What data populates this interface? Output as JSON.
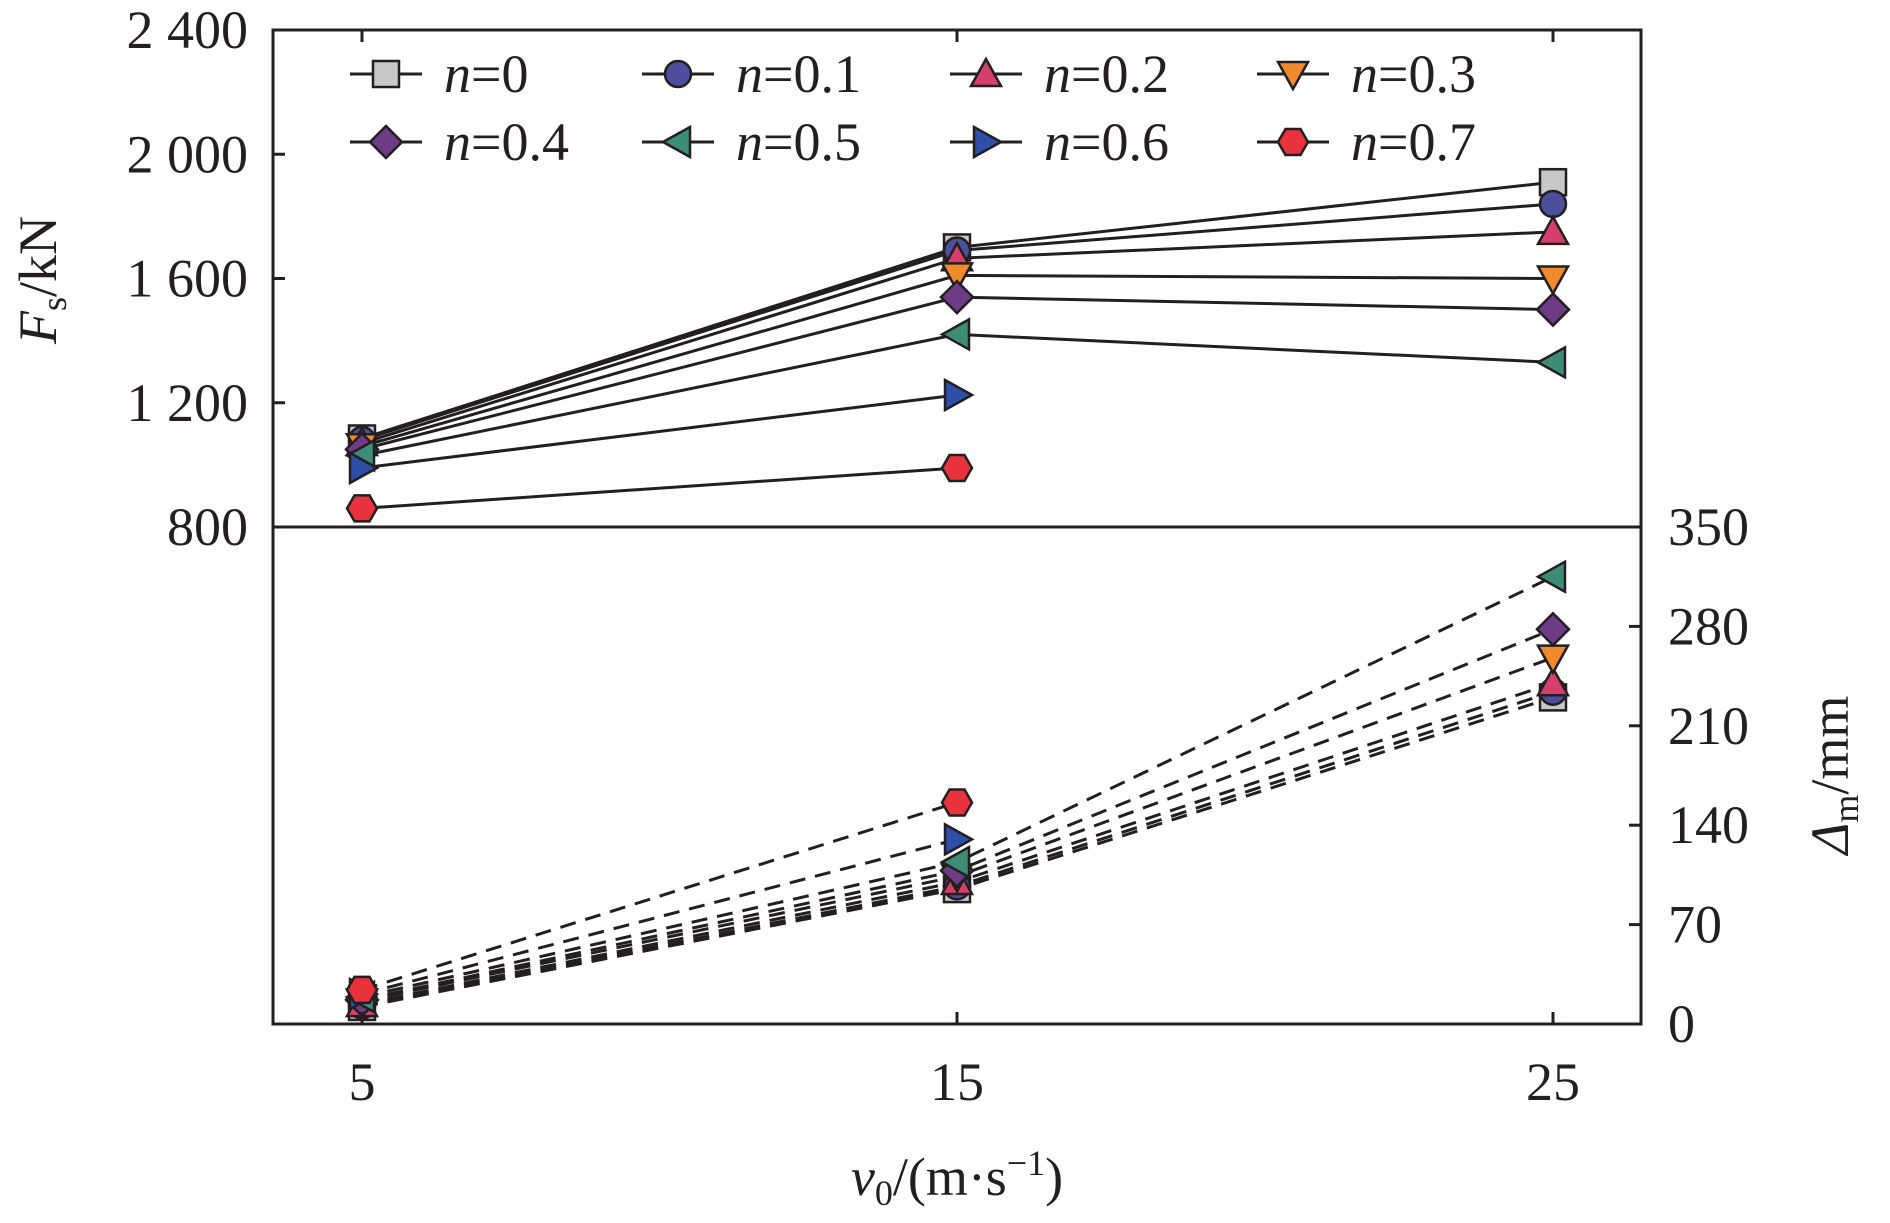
{
  "chart_data": {
    "type": "line",
    "x": [
      5,
      15,
      25
    ],
    "xticks": [
      "5",
      "15",
      "25"
    ],
    "xlabel": {
      "base": "v",
      "sub": "0",
      "rest": "/(m·s",
      "sup": "−1",
      "end": ")"
    },
    "top_panel": {
      "ylabel": {
        "base": "F",
        "sub": "s",
        "rest": "/kN"
      },
      "ylim": [
        800,
        2400
      ],
      "yticks": [
        800,
        1200,
        1600,
        2000,
        2400
      ],
      "ytick_labels": [
        "800",
        "1 200",
        "1 600",
        "2 000",
        "2 400"
      ],
      "line_style": "solid"
    },
    "bottom_panel": {
      "ylabel": {
        "base": "Δ",
        "sub": "m",
        "rest": "/mm"
      },
      "ylim": [
        0,
        350
      ],
      "yticks": [
        0,
        70,
        140,
        210,
        280,
        350
      ],
      "ytick_labels": [
        "0",
        "70",
        "140",
        "210",
        "280",
        "350"
      ],
      "line_style": "dashed",
      "axis_side": "right"
    },
    "legend": {
      "placement": "top",
      "columns": 4
    },
    "series": [
      {
        "name": "n=0",
        "label_var": "n",
        "label_val": "=0",
        "marker": "square",
        "color": "#c8c8c8",
        "force": [
          1085,
          1700,
          1910
        ],
        "disp": [
          12,
          95,
          230
        ]
      },
      {
        "name": "n=0.1",
        "label_var": "n",
        "label_val": "=0.1",
        "marker": "circle",
        "color": "#4b4f9c",
        "force": [
          1080,
          1690,
          1840
        ],
        "disp": [
          13,
          97,
          234
        ]
      },
      {
        "name": "n=0.2",
        "label_var": "n",
        "label_val": "=0.2",
        "marker": "triangle-up",
        "color": "#d63f6b",
        "force": [
          1070,
          1665,
          1750
        ],
        "disp": [
          14,
          100,
          240
        ]
      },
      {
        "name": "n=0.3",
        "label_var": "n",
        "label_val": "=0.3",
        "marker": "triangle-down",
        "color": "#f08a2c",
        "force": [
          1060,
          1610,
          1600
        ],
        "disp": [
          16,
          104,
          258
        ]
      },
      {
        "name": "n=0.4",
        "label_var": "n",
        "label_val": "=0.4",
        "marker": "diamond",
        "color": "#6e3b87",
        "force": [
          1050,
          1540,
          1500
        ],
        "disp": [
          17,
          108,
          278
        ]
      },
      {
        "name": "n=0.5",
        "label_var": "n",
        "label_val": "=0.5",
        "marker": "triangle-left",
        "color": "#3c8c78",
        "force": [
          1030,
          1420,
          1330
        ],
        "disp": [
          19,
          114,
          315
        ]
      },
      {
        "name": "n=0.6",
        "label_var": "n",
        "label_val": "=0.6",
        "marker": "triangle-right",
        "color": "#2e4fa8",
        "force": [
          990,
          1225,
          null
        ],
        "disp": [
          21,
          130,
          null
        ]
      },
      {
        "name": "n=0.7",
        "label_var": "n",
        "label_val": "=0.7",
        "marker": "hexagon",
        "color": "#e8323c",
        "force": [
          860,
          990,
          null
        ],
        "disp": [
          24,
          156,
          null
        ]
      }
    ]
  }
}
